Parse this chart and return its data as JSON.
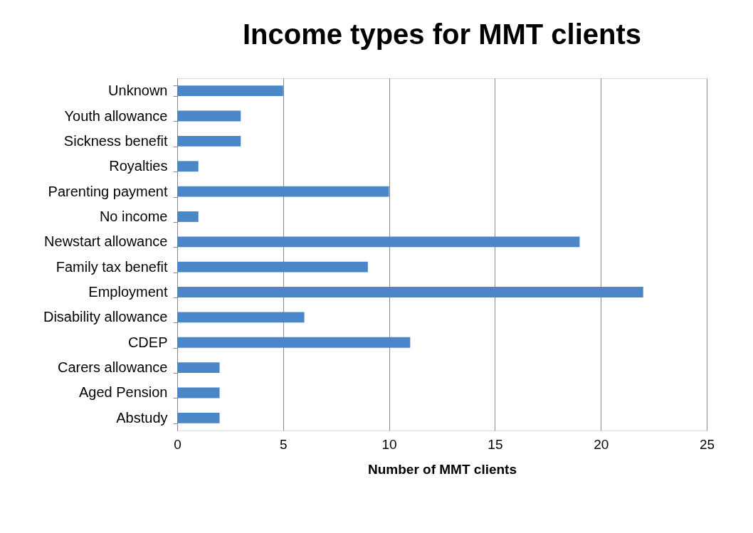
{
  "chart_data": {
    "type": "bar",
    "orientation": "horizontal",
    "title": "Income types for MMT clients",
    "xlabel": "Number of MMT clients",
    "categories": [
      "Unknown",
      "Youth allowance",
      "Sickness benefit",
      "Royalties",
      "Parenting payment",
      "No income",
      "Newstart allowance",
      "Family tax benefit",
      "Employment",
      "Disability allowance",
      "CDEP",
      "Carers allowance",
      "Aged Pension",
      "Abstudy"
    ],
    "values": [
      5,
      3,
      3,
      1,
      10,
      1,
      19,
      9,
      22,
      6,
      11,
      2,
      2,
      2
    ],
    "color": "#4a86c8",
    "xlim": [
      0,
      25
    ],
    "xticks": [
      0,
      5,
      10,
      15,
      20,
      25
    ],
    "grid": "x"
  }
}
